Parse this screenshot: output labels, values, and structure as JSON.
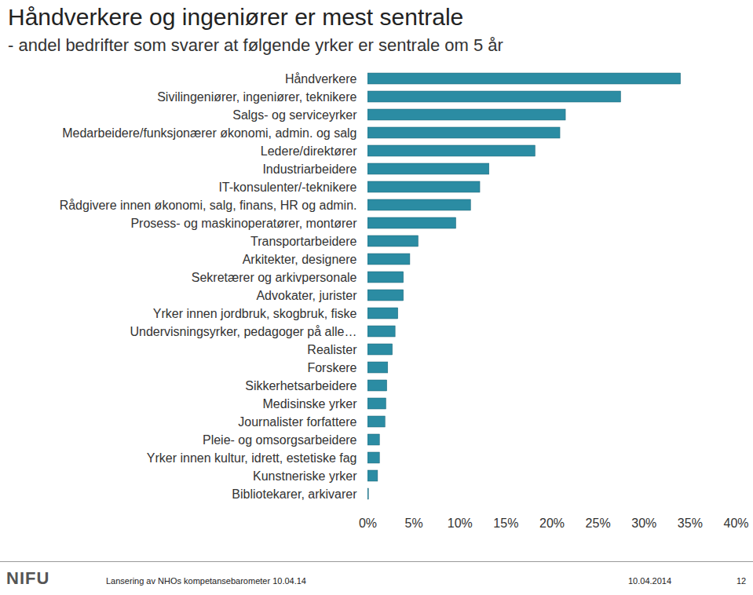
{
  "chart_data": {
    "type": "bar",
    "orientation": "horizontal",
    "title": "Håndverkere og ingeniører er mest sentrale",
    "subtitle": "- andel bedrifter som svarer at følgende yrker er sentrale om 5 år",
    "categories": [
      "Håndverkere",
      "Sivilingeniører, ingeniører, teknikere",
      "Salgs- og serviceyrker",
      "Medarbeidere/funksjonærer økonomi, admin. og salg",
      "Ledere/direktører",
      "Industriarbeidere",
      "IT-konsulenter/-teknikere",
      "Rådgivere innen økonomi, salg, finans, HR og admin.",
      "Prosess- og maskinoperatører, montører",
      "Transportarbeidere",
      "Arkitekter, designere",
      "Sekretærer og arkivpersonale",
      "Advokater, jurister",
      "Yrker innen jordbruk, skogbruk, fiske",
      "Undervisningsyrker, pedagoger på alle…",
      "Realister",
      "Forskere",
      "Sikkerhetsarbeidere",
      "Medisinske yrker",
      "Journalister forfattere",
      "Pleie- og omsorgsarbeidere",
      "Yrker innen kultur, idrett, estetiske fag",
      "Kunstneriske yrker",
      "Bibliotekarer, arkivarer"
    ],
    "values": [
      34.0,
      27.5,
      21.5,
      20.9,
      18.2,
      13.2,
      12.2,
      11.2,
      9.6,
      5.5,
      4.6,
      3.9,
      3.9,
      3.3,
      3.0,
      2.7,
      2.2,
      2.1,
      2.0,
      1.9,
      1.3,
      1.3,
      1.1,
      0.1
    ],
    "color": "#2b8ca3",
    "xlim": [
      0,
      40
    ],
    "xticks": [
      {
        "value": 0,
        "label": "0%"
      },
      {
        "value": 5,
        "label": "5%"
      },
      {
        "value": 10,
        "label": "10%"
      },
      {
        "value": 15,
        "label": "15%"
      },
      {
        "value": 20,
        "label": "20%"
      },
      {
        "value": 25,
        "label": "25%"
      },
      {
        "value": 30,
        "label": "30%"
      },
      {
        "value": 35,
        "label": "35%"
      },
      {
        "value": 40,
        "label": "40%"
      }
    ],
    "grid": false
  },
  "footer": {
    "logo": "NIFU",
    "event": "Lansering av NHOs kompetansebarometer 10.04.14",
    "date": "10.04.2014",
    "page": "12"
  }
}
